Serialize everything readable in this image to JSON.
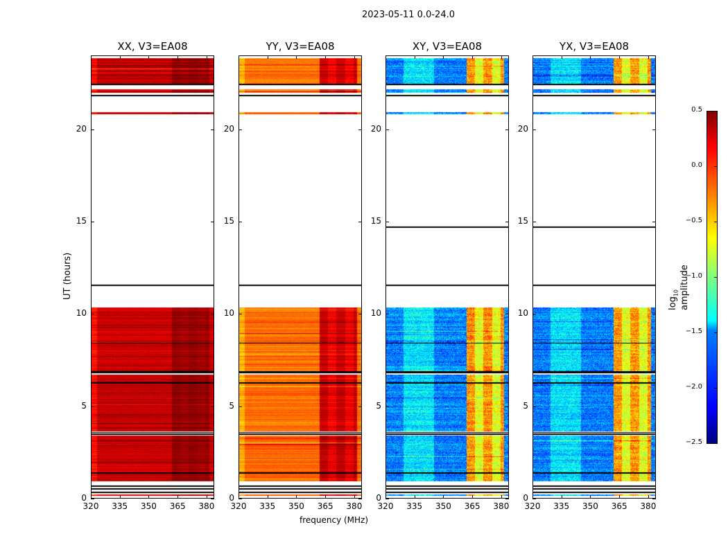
{
  "chart_data": {
    "type": "heatmap",
    "title": "2023-05-11 0.0-24.0",
    "xlabel": "frequency (MHz)",
    "ylabel": "UT (hours)",
    "xlim": [
      320,
      384
    ],
    "ylim": [
      0,
      24
    ],
    "xticks": [
      "320",
      "335",
      "350",
      "365",
      "380"
    ],
    "xtick_values": [
      320,
      335,
      350,
      365,
      380
    ],
    "yticks": [
      "0",
      "5",
      "10",
      "15",
      "20"
    ],
    "ytick_values": [
      0,
      5,
      10,
      15,
      20
    ],
    "panels": [
      {
        "title": "XX, V3=EA08",
        "mean_log_amp": 0.3,
        "band_362_382_offset": 0.15
      },
      {
        "title": "YY, V3=EA08",
        "mean_log_amp": -0.2,
        "band_362_382_offset": 0.45
      },
      {
        "title": "XY, V3=EA08",
        "mean_log_amp": -1.75,
        "band_362_382_offset": 1.3
      },
      {
        "title": "YX, V3=EA08",
        "mean_log_amp": -1.75,
        "band_362_382_offset": 1.3
      }
    ],
    "data_time_ranges_hours": [
      [
        0.1,
        0.2
      ],
      [
        0.9,
        1.3
      ],
      [
        1.4,
        3.4
      ],
      [
        3.6,
        6.2
      ],
      [
        6.3,
        6.7
      ],
      [
        6.9,
        10.35
      ],
      [
        14.7,
        14.72
      ],
      [
        20.85,
        20.95
      ],
      [
        22.0,
        22.2
      ],
      [
        22.5,
        23.9
      ]
    ],
    "flag_lines_hours": [
      0.3,
      0.5,
      0.65,
      1.35,
      3.45,
      3.55,
      6.25,
      6.8,
      6.85,
      8.4,
      11.55,
      21.85,
      22.45
    ],
    "colorbar": {
      "label_main": "log",
      "label_sub": "10",
      "label_rest": " amplitude",
      "range": [
        -2.5,
        0.5
      ],
      "colormap": "jet",
      "tick_values": [
        0.5,
        0.0,
        -0.5,
        -1.0,
        -1.5,
        -2.0,
        -2.5
      ],
      "ticks": [
        "0.5",
        "0.0",
        "−0.5",
        "−1.0",
        "−1.5",
        "−2.0",
        "−2.5"
      ]
    }
  }
}
